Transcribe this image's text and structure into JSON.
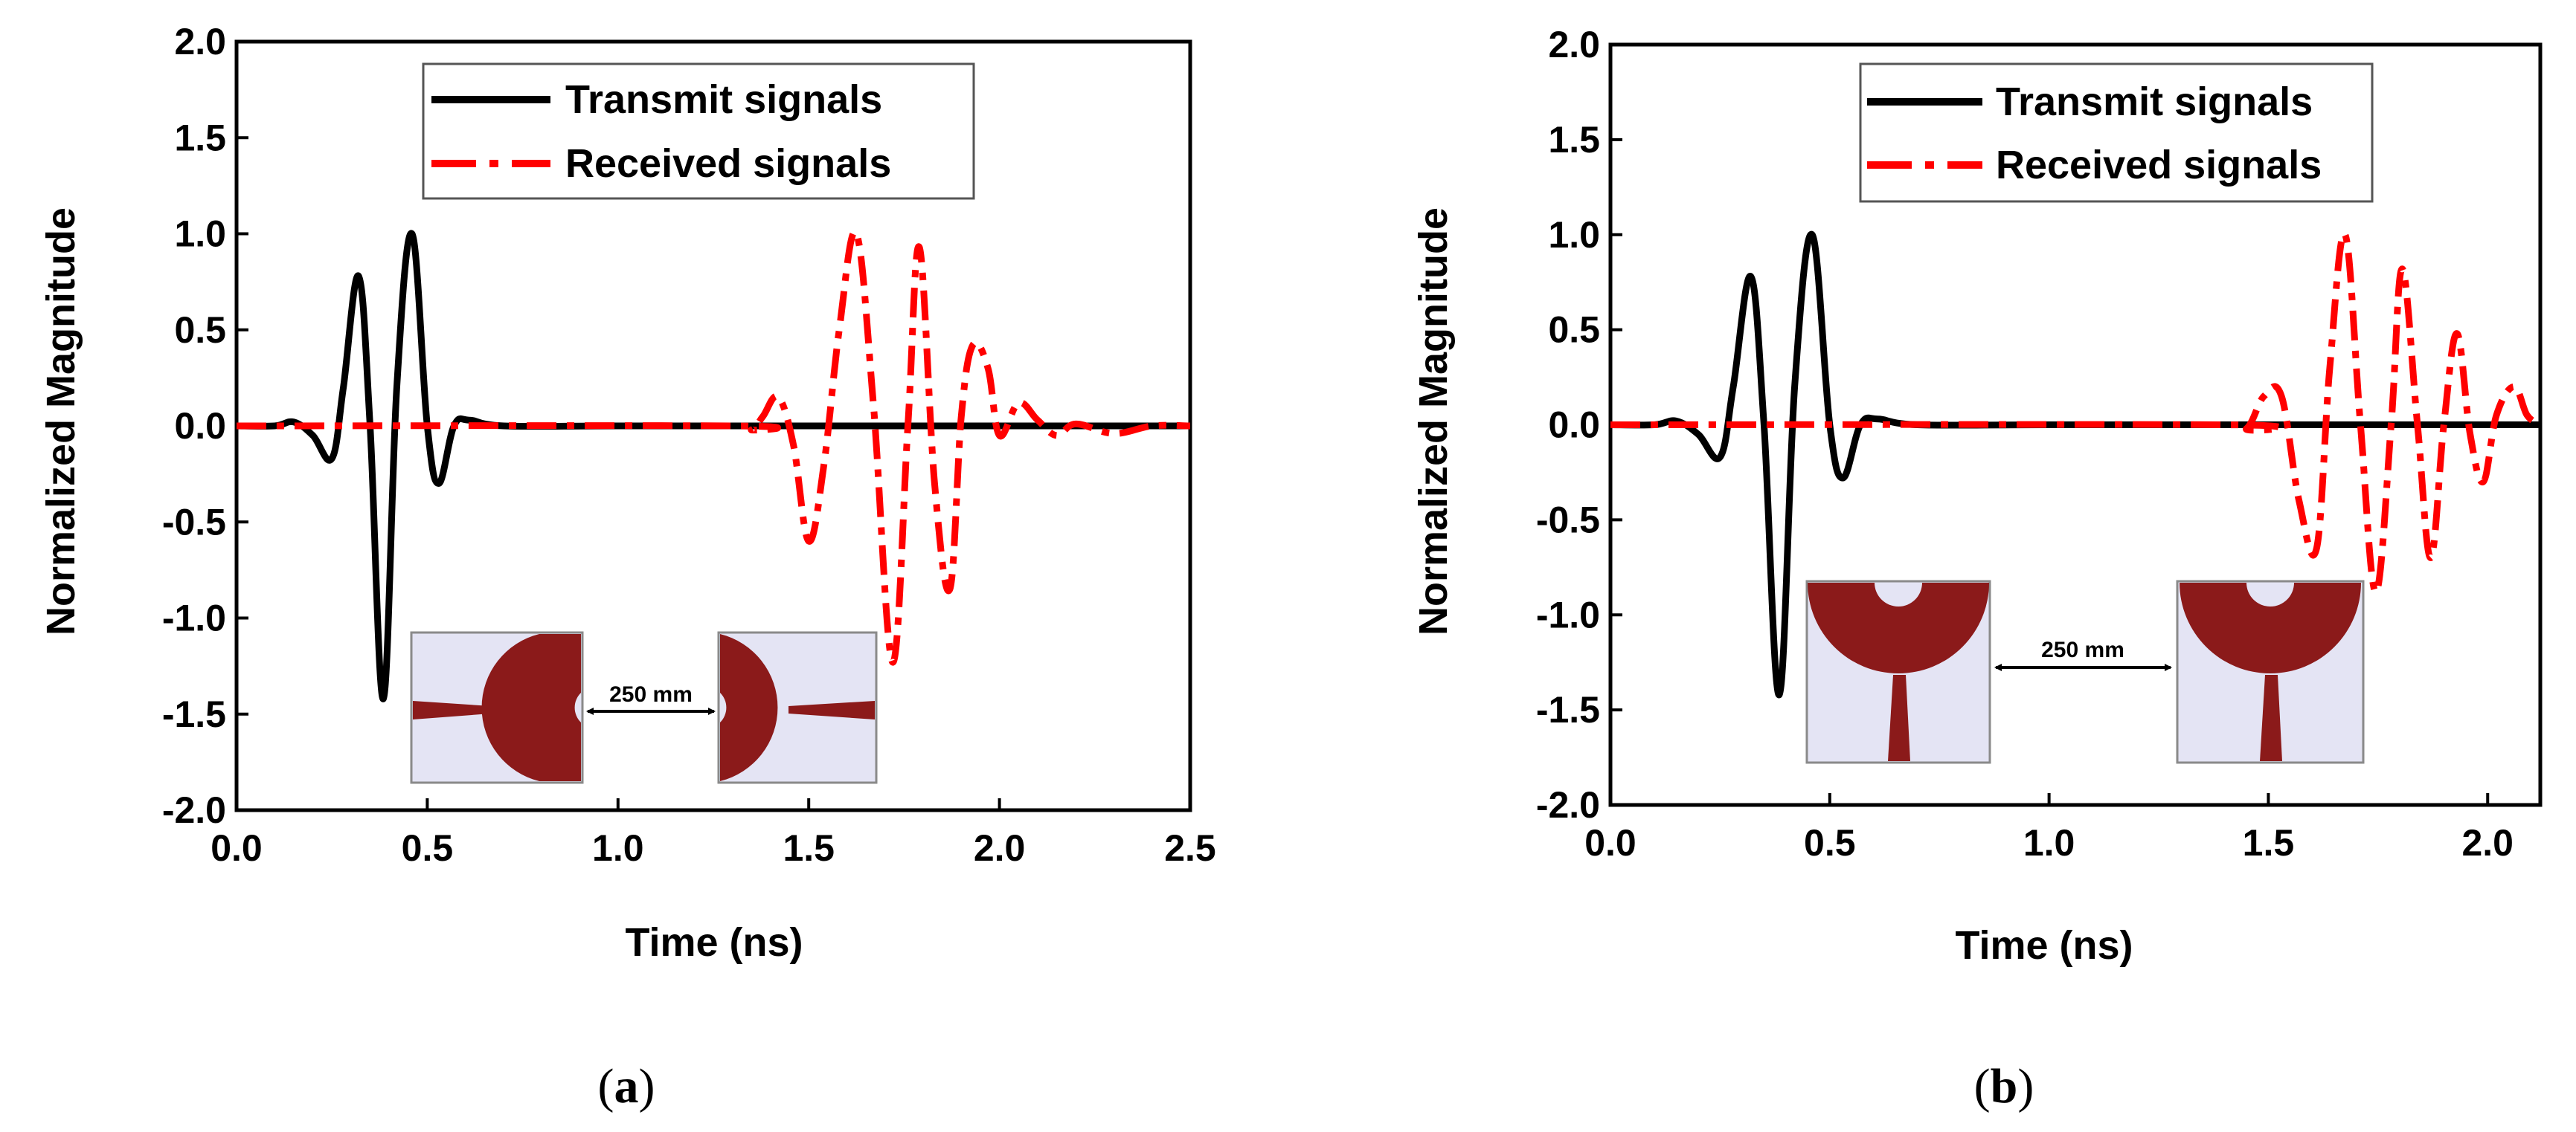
{
  "chart_data": [
    {
      "panel": "(a)",
      "panel_letter": "a",
      "type": "line",
      "xlabel": "Time (ns)",
      "ylabel": "Normalized Magnitude",
      "xlim": [
        0.0,
        2.5
      ],
      "ylim": [
        -2.0,
        2.0
      ],
      "xticks": [
        "0.0",
        "0.5",
        "1.0",
        "1.5",
        "2.0",
        "2.5"
      ],
      "yticks": [
        "2.0",
        "1.5",
        "1.0",
        "0.5",
        "0.0",
        "-0.5",
        "-1.0",
        "-1.5",
        "-2.0"
      ],
      "legend_position": "top-center",
      "inset_label": "250 mm",
      "series": [
        {
          "name": "Transmit signals",
          "color": "#000000",
          "style": "solid",
          "x": [
            0.0,
            0.1,
            0.15,
            0.2,
            0.25,
            0.28,
            0.32,
            0.35,
            0.385,
            0.42,
            0.46,
            0.5,
            0.53,
            0.57,
            0.61,
            0.7,
            1.0,
            1.5,
            2.0,
            2.5
          ],
          "y": [
            0.0,
            0.0,
            0.02,
            -0.05,
            -0.17,
            0.2,
            0.78,
            0.0,
            -1.42,
            0.2,
            1.0,
            0.0,
            -0.3,
            0.0,
            0.03,
            0.0,
            0.0,
            0.0,
            0.0,
            0.0
          ]
        },
        {
          "name": "Received signals",
          "color": "#ff0000",
          "style": "dashdot",
          "x": [
            0.0,
            1.3,
            1.35,
            1.38,
            1.42,
            1.46,
            1.5,
            1.54,
            1.58,
            1.625,
            1.67,
            1.72,
            1.76,
            1.79,
            1.83,
            1.87,
            1.9,
            1.93,
            1.97,
            2.0,
            2.05,
            2.1,
            2.15,
            2.2,
            2.3,
            2.4,
            2.5
          ],
          "y": [
            0.0,
            0.0,
            -0.02,
            0.05,
            0.15,
            -0.1,
            -0.6,
            -0.2,
            0.5,
            1.0,
            0.1,
            -1.23,
            0.0,
            0.93,
            -0.3,
            -0.85,
            0.05,
            0.42,
            0.3,
            -0.05,
            0.12,
            0.03,
            -0.05,
            0.01,
            -0.04,
            0.0,
            0.0
          ]
        }
      ]
    },
    {
      "panel": "(b)",
      "panel_letter": "b",
      "type": "line",
      "xlabel": "Time (ns)",
      "ylabel": "Normalized Magnitude",
      "xlim": [
        0.0,
        2.12
      ],
      "ylim": [
        -2.0,
        2.0
      ],
      "xticks": [
        "0.0",
        "0.5",
        "1.0",
        "1.5",
        "2.0"
      ],
      "yticks": [
        "2.0",
        "1.5",
        "1.0",
        "0.5",
        "0.0",
        "-0.5",
        "-1.0",
        "-1.5",
        "-2.0"
      ],
      "legend_position": "top-center",
      "inset_label": "250 mm",
      "series": [
        {
          "name": "Transmit signals",
          "color": "#000000",
          "style": "solid",
          "x": [
            0.0,
            0.1,
            0.15,
            0.2,
            0.25,
            0.28,
            0.32,
            0.35,
            0.385,
            0.42,
            0.46,
            0.5,
            0.53,
            0.57,
            0.61,
            0.7,
            1.0,
            1.5,
            2.0,
            2.12
          ],
          "y": [
            0.0,
            0.0,
            0.02,
            -0.05,
            -0.17,
            0.2,
            0.78,
            0.0,
            -1.42,
            0.2,
            1.0,
            0.0,
            -0.28,
            0.0,
            0.03,
            0.0,
            0.0,
            0.0,
            0.0,
            0.0
          ]
        },
        {
          "name": "Received signals",
          "color": "#ff0000",
          "style": "dashdot",
          "x": [
            0.0,
            1.4,
            1.45,
            1.49,
            1.53,
            1.57,
            1.61,
            1.64,
            1.675,
            1.71,
            1.745,
            1.78,
            1.805,
            1.84,
            1.87,
            1.9,
            1.93,
            1.96,
            1.99,
            2.02,
            2.06,
            2.09,
            2.12
          ],
          "y": [
            0.0,
            0.0,
            -0.02,
            0.15,
            0.15,
            -0.4,
            -0.65,
            0.3,
            1.0,
            0.0,
            -0.88,
            0.0,
            0.82,
            0.0,
            -0.7,
            0.0,
            0.48,
            -0.05,
            -0.3,
            0.05,
            0.2,
            0.05,
            0.0
          ]
        }
      ]
    }
  ]
}
